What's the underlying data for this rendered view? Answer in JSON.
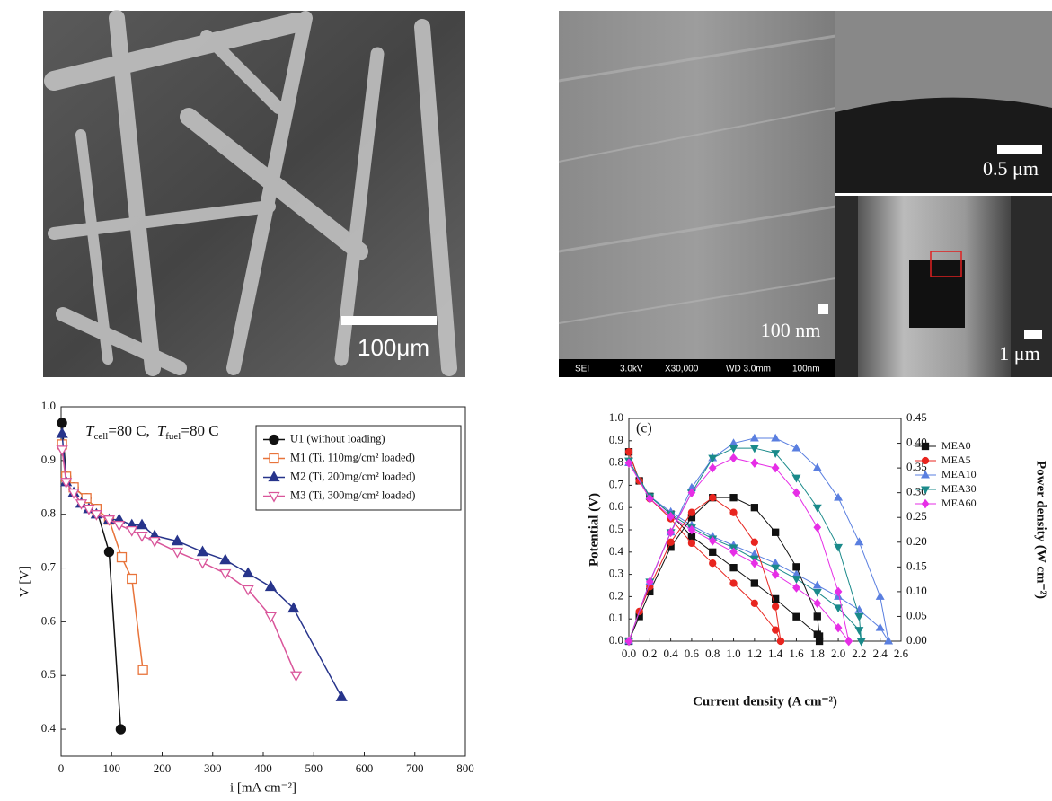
{
  "images": [
    {
      "scale_label": "100μm"
    },
    {
      "scale_label": "100 nm",
      "info_bar": [
        "SEI",
        "3.0kV",
        "X30,000",
        "WD 3.0mm",
        "100nm"
      ]
    },
    {
      "scale_label": "0.5 μm"
    },
    {
      "scale_label": "1 μm"
    }
  ],
  "chart_data": [
    {
      "type": "line",
      "annotation": [
        "T",
        "cell",
        "=80 C,",
        "T",
        "fuel",
        "=80 C"
      ],
      "x_label": "i [mA cm⁻²]",
      "y_label": "V [V]",
      "xlim": [
        0,
        800
      ],
      "xticks": [
        0,
        100,
        200,
        300,
        400,
        500,
        600,
        700,
        800
      ],
      "ylim": [
        0.35,
        1.0
      ],
      "yticks": [
        0.4,
        0.5,
        0.6,
        0.7,
        0.8,
        0.9,
        {
          "value": 1.0,
          "label": "1.0"
        }
      ],
      "legend": "upper right",
      "series": [
        {
          "name": "U1 (without loading)",
          "color": "#111111",
          "marker": "circle",
          "filled": true,
          "x": [
            2,
            10,
            25,
            50,
            70,
            95,
            118
          ],
          "values": [
            0.97,
            0.87,
            0.85,
            0.83,
            0.81,
            0.73,
            0.4
          ]
        },
        {
          "name": "M1 (Ti, 110mg/cm² loaded)",
          "color": "#e8743b",
          "marker": "square",
          "filled": false,
          "x": [
            2,
            10,
            25,
            50,
            70,
            95,
            120,
            140,
            162
          ],
          "values": [
            0.93,
            0.87,
            0.85,
            0.83,
            0.81,
            0.79,
            0.72,
            0.68,
            0.51
          ]
        },
        {
          "name": "M2 (Ti, 200mg/cm² loaded)",
          "color": "#27348b",
          "marker": "triangle-up",
          "filled": true,
          "x": [
            2,
            10,
            25,
            40,
            55,
            70,
            95,
            115,
            140,
            160,
            185,
            230,
            280,
            325,
            370,
            415,
            460,
            555
          ],
          "values": [
            0.95,
            0.86,
            0.84,
            0.82,
            0.81,
            0.8,
            0.79,
            0.79,
            0.78,
            0.78,
            0.76,
            0.75,
            0.73,
            0.715,
            0.69,
            0.665,
            0.625,
            0.46
          ]
        },
        {
          "name": "M3 (Ti, 300mg/cm² loaded)",
          "color": "#d9559a",
          "marker": "triangle-down",
          "filled": false,
          "x": [
            2,
            10,
            25,
            40,
            55,
            70,
            95,
            115,
            140,
            160,
            185,
            230,
            280,
            325,
            370,
            415,
            465
          ],
          "values": [
            0.92,
            0.86,
            0.84,
            0.82,
            0.81,
            0.8,
            0.79,
            0.78,
            0.77,
            0.76,
            0.75,
            0.73,
            0.71,
            0.69,
            0.66,
            0.61,
            0.5
          ]
        }
      ]
    },
    {
      "type": "line",
      "annotation": [
        "(c)"
      ],
      "x_label": "Current density (A cm⁻²)",
      "y_label": "Potential (V)",
      "y2_label": "Power density (W cm⁻²)",
      "xlim": [
        0,
        2.6
      ],
      "xticks": [
        {
          "value": 0,
          "label": "0.0"
        },
        0.2,
        0.4,
        0.6,
        0.8,
        {
          "value": 1.0,
          "label": "1.0"
        },
        1.2,
        1.4,
        1.6,
        1.8,
        {
          "value": 2.0,
          "label": "2.0"
        },
        2.2,
        2.4,
        2.6
      ],
      "ylim": [
        0,
        1.0
      ],
      "yticks": [
        {
          "value": 0,
          "label": "0.0"
        },
        0.1,
        0.2,
        0.3,
        0.4,
        0.5,
        0.6,
        0.7,
        0.8,
        0.9,
        {
          "value": 1.0,
          "label": "1.0"
        }
      ],
      "y2lim": [
        0,
        0.45
      ],
      "y2ticks": [
        {
          "value": 0,
          "label": "0.00"
        },
        0.05,
        {
          "value": 0.1,
          "label": "0.10"
        },
        0.15,
        {
          "value": 0.2,
          "label": "0.20"
        },
        0.25,
        {
          "value": 0.3,
          "label": "0.30"
        },
        0.35,
        {
          "value": 0.4,
          "label": "0.40"
        },
        0.45
      ],
      "legend": "upper right",
      "series": [
        {
          "name": "MEA0",
          "color": "#111111",
          "marker": "square",
          "filled": true,
          "x": [
            0,
            0.1,
            0.2,
            0.4,
            0.6,
            0.8,
            1.0,
            1.2,
            1.4,
            1.6,
            1.8,
            1.82
          ],
          "values": [
            0.85,
            0.72,
            0.65,
            0.57,
            0.47,
            0.4,
            0.33,
            0.26,
            0.19,
            0.11,
            0.03,
            0.0
          ]
        },
        {
          "name": "MEA5",
          "color": "#e8251f",
          "marker": "circle",
          "filled": true,
          "x": [
            0,
            0.1,
            0.2,
            0.4,
            0.6,
            0.8,
            1.0,
            1.2,
            1.4,
            1.45
          ],
          "values": [
            0.85,
            0.72,
            0.64,
            0.55,
            0.44,
            0.35,
            0.26,
            0.17,
            0.05,
            0.0
          ]
        },
        {
          "name": "MEA10",
          "color": "#5a7fe0",
          "marker": "triangle-up",
          "filled": true,
          "x": [
            0,
            0.2,
            0.4,
            0.6,
            0.8,
            1.0,
            1.2,
            1.4,
            1.6,
            1.8,
            2.0,
            2.2,
            2.4,
            2.48
          ],
          "values": [
            0.8,
            0.65,
            0.58,
            0.52,
            0.47,
            0.43,
            0.39,
            0.35,
            0.3,
            0.25,
            0.2,
            0.14,
            0.06,
            0.0
          ]
        },
        {
          "name": "MEA30",
          "color": "#1a8a8a",
          "marker": "triangle-down",
          "filled": true,
          "x": [
            0,
            0.2,
            0.4,
            0.6,
            0.8,
            1.0,
            1.2,
            1.4,
            1.6,
            1.8,
            2.0,
            2.2,
            2.22
          ],
          "values": [
            0.81,
            0.65,
            0.57,
            0.51,
            0.46,
            0.42,
            0.37,
            0.33,
            0.28,
            0.22,
            0.15,
            0.05,
            0.0
          ]
        },
        {
          "name": "MEA60",
          "color": "#e62ee6",
          "marker": "diamond",
          "filled": true,
          "x": [
            0,
            0.2,
            0.4,
            0.6,
            0.8,
            1.0,
            1.2,
            1.4,
            1.6,
            1.8,
            2.0,
            2.1
          ],
          "values": [
            0.8,
            0.64,
            0.56,
            0.5,
            0.45,
            0.4,
            0.35,
            0.3,
            0.24,
            0.17,
            0.06,
            0.0
          ]
        },
        {
          "name": "MEA0",
          "color": "#111111",
          "marker": "square",
          "filled": true,
          "axis": "y2",
          "x": [
            0,
            0.1,
            0.2,
            0.4,
            0.6,
            0.8,
            1.0,
            1.2,
            1.4,
            1.6,
            1.8,
            1.82
          ],
          "values": [
            0,
            0.05,
            0.1,
            0.19,
            0.25,
            0.29,
            0.29,
            0.27,
            0.22,
            0.15,
            0.05,
            0.01
          ]
        },
        {
          "name": "MEA5",
          "color": "#e8251f",
          "marker": "circle",
          "filled": true,
          "axis": "y2",
          "x": [
            0,
            0.1,
            0.2,
            0.4,
            0.6,
            0.8,
            1.0,
            1.2,
            1.4,
            1.45
          ],
          "values": [
            0,
            0.06,
            0.11,
            0.2,
            0.26,
            0.29,
            0.26,
            0.2,
            0.07,
            0.0
          ]
        },
        {
          "name": "MEA10",
          "color": "#5a7fe0",
          "marker": "triangle-up",
          "filled": true,
          "axis": "y2",
          "x": [
            0,
            0.2,
            0.4,
            0.6,
            0.8,
            1.0,
            1.2,
            1.4,
            1.6,
            1.8,
            2.0,
            2.2,
            2.4,
            2.48
          ],
          "values": [
            0,
            0.12,
            0.22,
            0.31,
            0.37,
            0.4,
            0.41,
            0.41,
            0.39,
            0.35,
            0.29,
            0.2,
            0.09,
            0.0
          ]
        },
        {
          "name": "MEA30",
          "color": "#1a8a8a",
          "marker": "triangle-down",
          "filled": true,
          "axis": "y2",
          "x": [
            0,
            0.2,
            0.4,
            0.6,
            0.8,
            1.0,
            1.2,
            1.4,
            1.6,
            1.8,
            2.0,
            2.2,
            2.22
          ],
          "values": [
            0,
            0.12,
            0.22,
            0.3,
            0.37,
            0.39,
            0.39,
            0.38,
            0.33,
            0.27,
            0.19,
            0.05,
            0.0
          ]
        },
        {
          "name": "MEA60",
          "color": "#e62ee6",
          "marker": "diamond",
          "filled": true,
          "axis": "y2",
          "x": [
            0,
            0.2,
            0.4,
            0.6,
            0.8,
            1.0,
            1.2,
            1.4,
            1.6,
            1.8,
            2.0,
            2.1
          ],
          "values": [
            0,
            0.12,
            0.22,
            0.3,
            0.35,
            0.37,
            0.36,
            0.35,
            0.3,
            0.23,
            0.1,
            0.0
          ]
        }
      ]
    }
  ]
}
